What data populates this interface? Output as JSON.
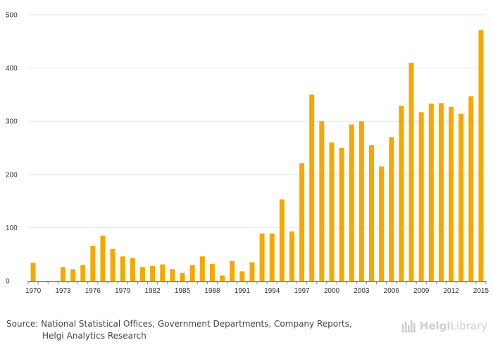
{
  "chart_data": {
    "type": "bar",
    "title": "",
    "xlabel": "",
    "ylabel": "",
    "ylim": [
      0,
      500
    ],
    "yticks": [
      0,
      100,
      200,
      300,
      400,
      500
    ],
    "x_tick_labels": [
      "1970",
      "1973",
      "1976",
      "1979",
      "1982",
      "1985",
      "1988",
      "1991",
      "1994",
      "1997",
      "2000",
      "2003",
      "2006",
      "2009",
      "2012",
      "2015"
    ],
    "bar_color": "#f5a800",
    "categories": [
      1970,
      1971,
      1972,
      1973,
      1974,
      1975,
      1976,
      1977,
      1978,
      1979,
      1980,
      1981,
      1982,
      1983,
      1984,
      1985,
      1986,
      1987,
      1988,
      1989,
      1990,
      1991,
      1992,
      1993,
      1994,
      1995,
      1996,
      1997,
      1998,
      1999,
      2000,
      2001,
      2002,
      2003,
      2004,
      2005,
      2006,
      2007,
      2008,
      2009,
      2010,
      2011,
      2012,
      2013,
      2014,
      2015
    ],
    "values": [
      34,
      0,
      0,
      26,
      22,
      30,
      66,
      85,
      60,
      46,
      43,
      26,
      28,
      31,
      22,
      15,
      30,
      46,
      32,
      10,
      37,
      18,
      35,
      89,
      89,
      153,
      93,
      221,
      350,
      300,
      260,
      250,
      294,
      300,
      255,
      215,
      270,
      329,
      410,
      317,
      333,
      334,
      327,
      314,
      347,
      471
    ]
  },
  "footer": {
    "source_line1": "Source: National Statistical Offices, Government Departments, Company Reports,",
    "source_line2": "Helgi Analytics Research",
    "brand_prefix": "Helgi",
    "brand_suffix": "Library"
  }
}
